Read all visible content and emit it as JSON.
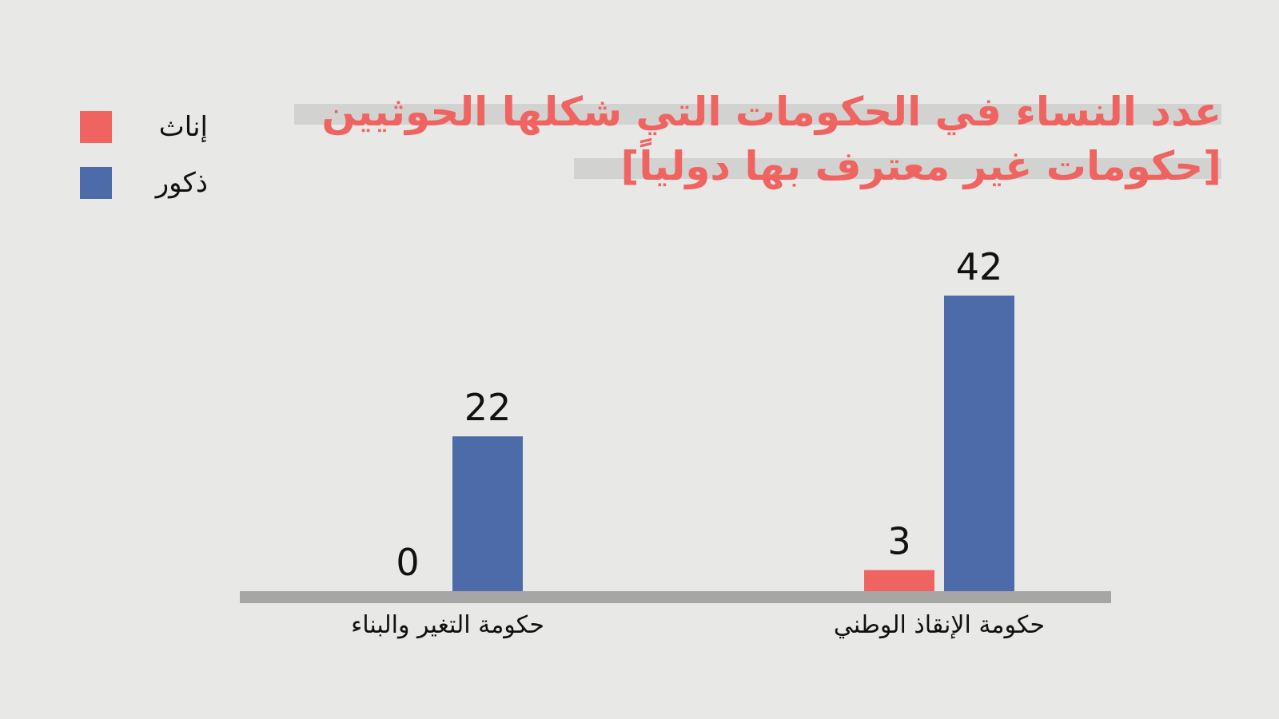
{
  "chart_data": {
    "type": "bar",
    "title_lines": [
      "عدد النساء في الحكومات التي شكلها الحوثيين",
      "[حكومات غير معترف بها دولياً]"
    ],
    "categories": [
      "حكومة التغير والبناء",
      "حكومة الإنقاذ الوطني"
    ],
    "series": [
      {
        "name": "إناث",
        "values": [
          0,
          3
        ],
        "color": "#ef6461"
      },
      {
        "name": "ذكور",
        "values": [
          22,
          42
        ],
        "color": "#4c6ba8"
      }
    ],
    "data_labels": [
      "0",
      "3",
      "22",
      "42"
    ],
    "ylim": [
      0,
      42
    ],
    "legend_position": "top-left",
    "grid": false,
    "baseline_color": "#a6a6a4"
  }
}
